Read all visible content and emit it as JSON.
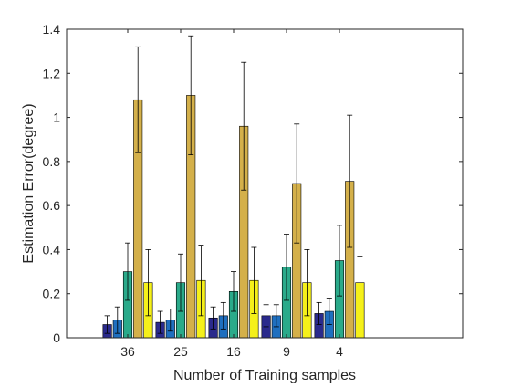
{
  "chart_data": {
    "type": "bar",
    "title": "",
    "xlabel": "Number of Training samples",
    "ylabel": "Estimation Error(degree)",
    "categories": [
      "36",
      "25",
      "16",
      "9",
      "4"
    ],
    "ylim": [
      0,
      1.4
    ],
    "yticks": [
      "0",
      "0.2",
      "0.4",
      "0.6",
      "0.8",
      "1",
      "1.2",
      "1.4"
    ],
    "grid": false,
    "legend": "none",
    "series": [
      {
        "color": "#2a2a8c",
        "values": [
          0.06,
          0.07,
          0.09,
          0.1,
          0.11
        ],
        "errors": [
          0.04,
          0.05,
          0.05,
          0.05,
          0.05
        ]
      },
      {
        "color": "#1f6fbf",
        "values": [
          0.08,
          0.08,
          0.1,
          0.1,
          0.12
        ],
        "errors": [
          0.06,
          0.05,
          0.06,
          0.05,
          0.06
        ]
      },
      {
        "color": "#2aaa8a",
        "values": [
          0.3,
          0.25,
          0.21,
          0.32,
          0.35
        ],
        "errors": [
          0.13,
          0.13,
          0.09,
          0.15,
          0.16
        ]
      },
      {
        "color": "#d4b04a",
        "values": [
          1.08,
          1.1,
          0.96,
          0.7,
          0.71
        ],
        "errors": [
          0.24,
          0.27,
          0.29,
          0.27,
          0.3
        ]
      },
      {
        "color": "#f5f01a",
        "values": [
          0.25,
          0.26,
          0.26,
          0.25,
          0.25
        ],
        "errors": [
          0.15,
          0.16,
          0.15,
          0.15,
          0.12
        ]
      }
    ]
  }
}
